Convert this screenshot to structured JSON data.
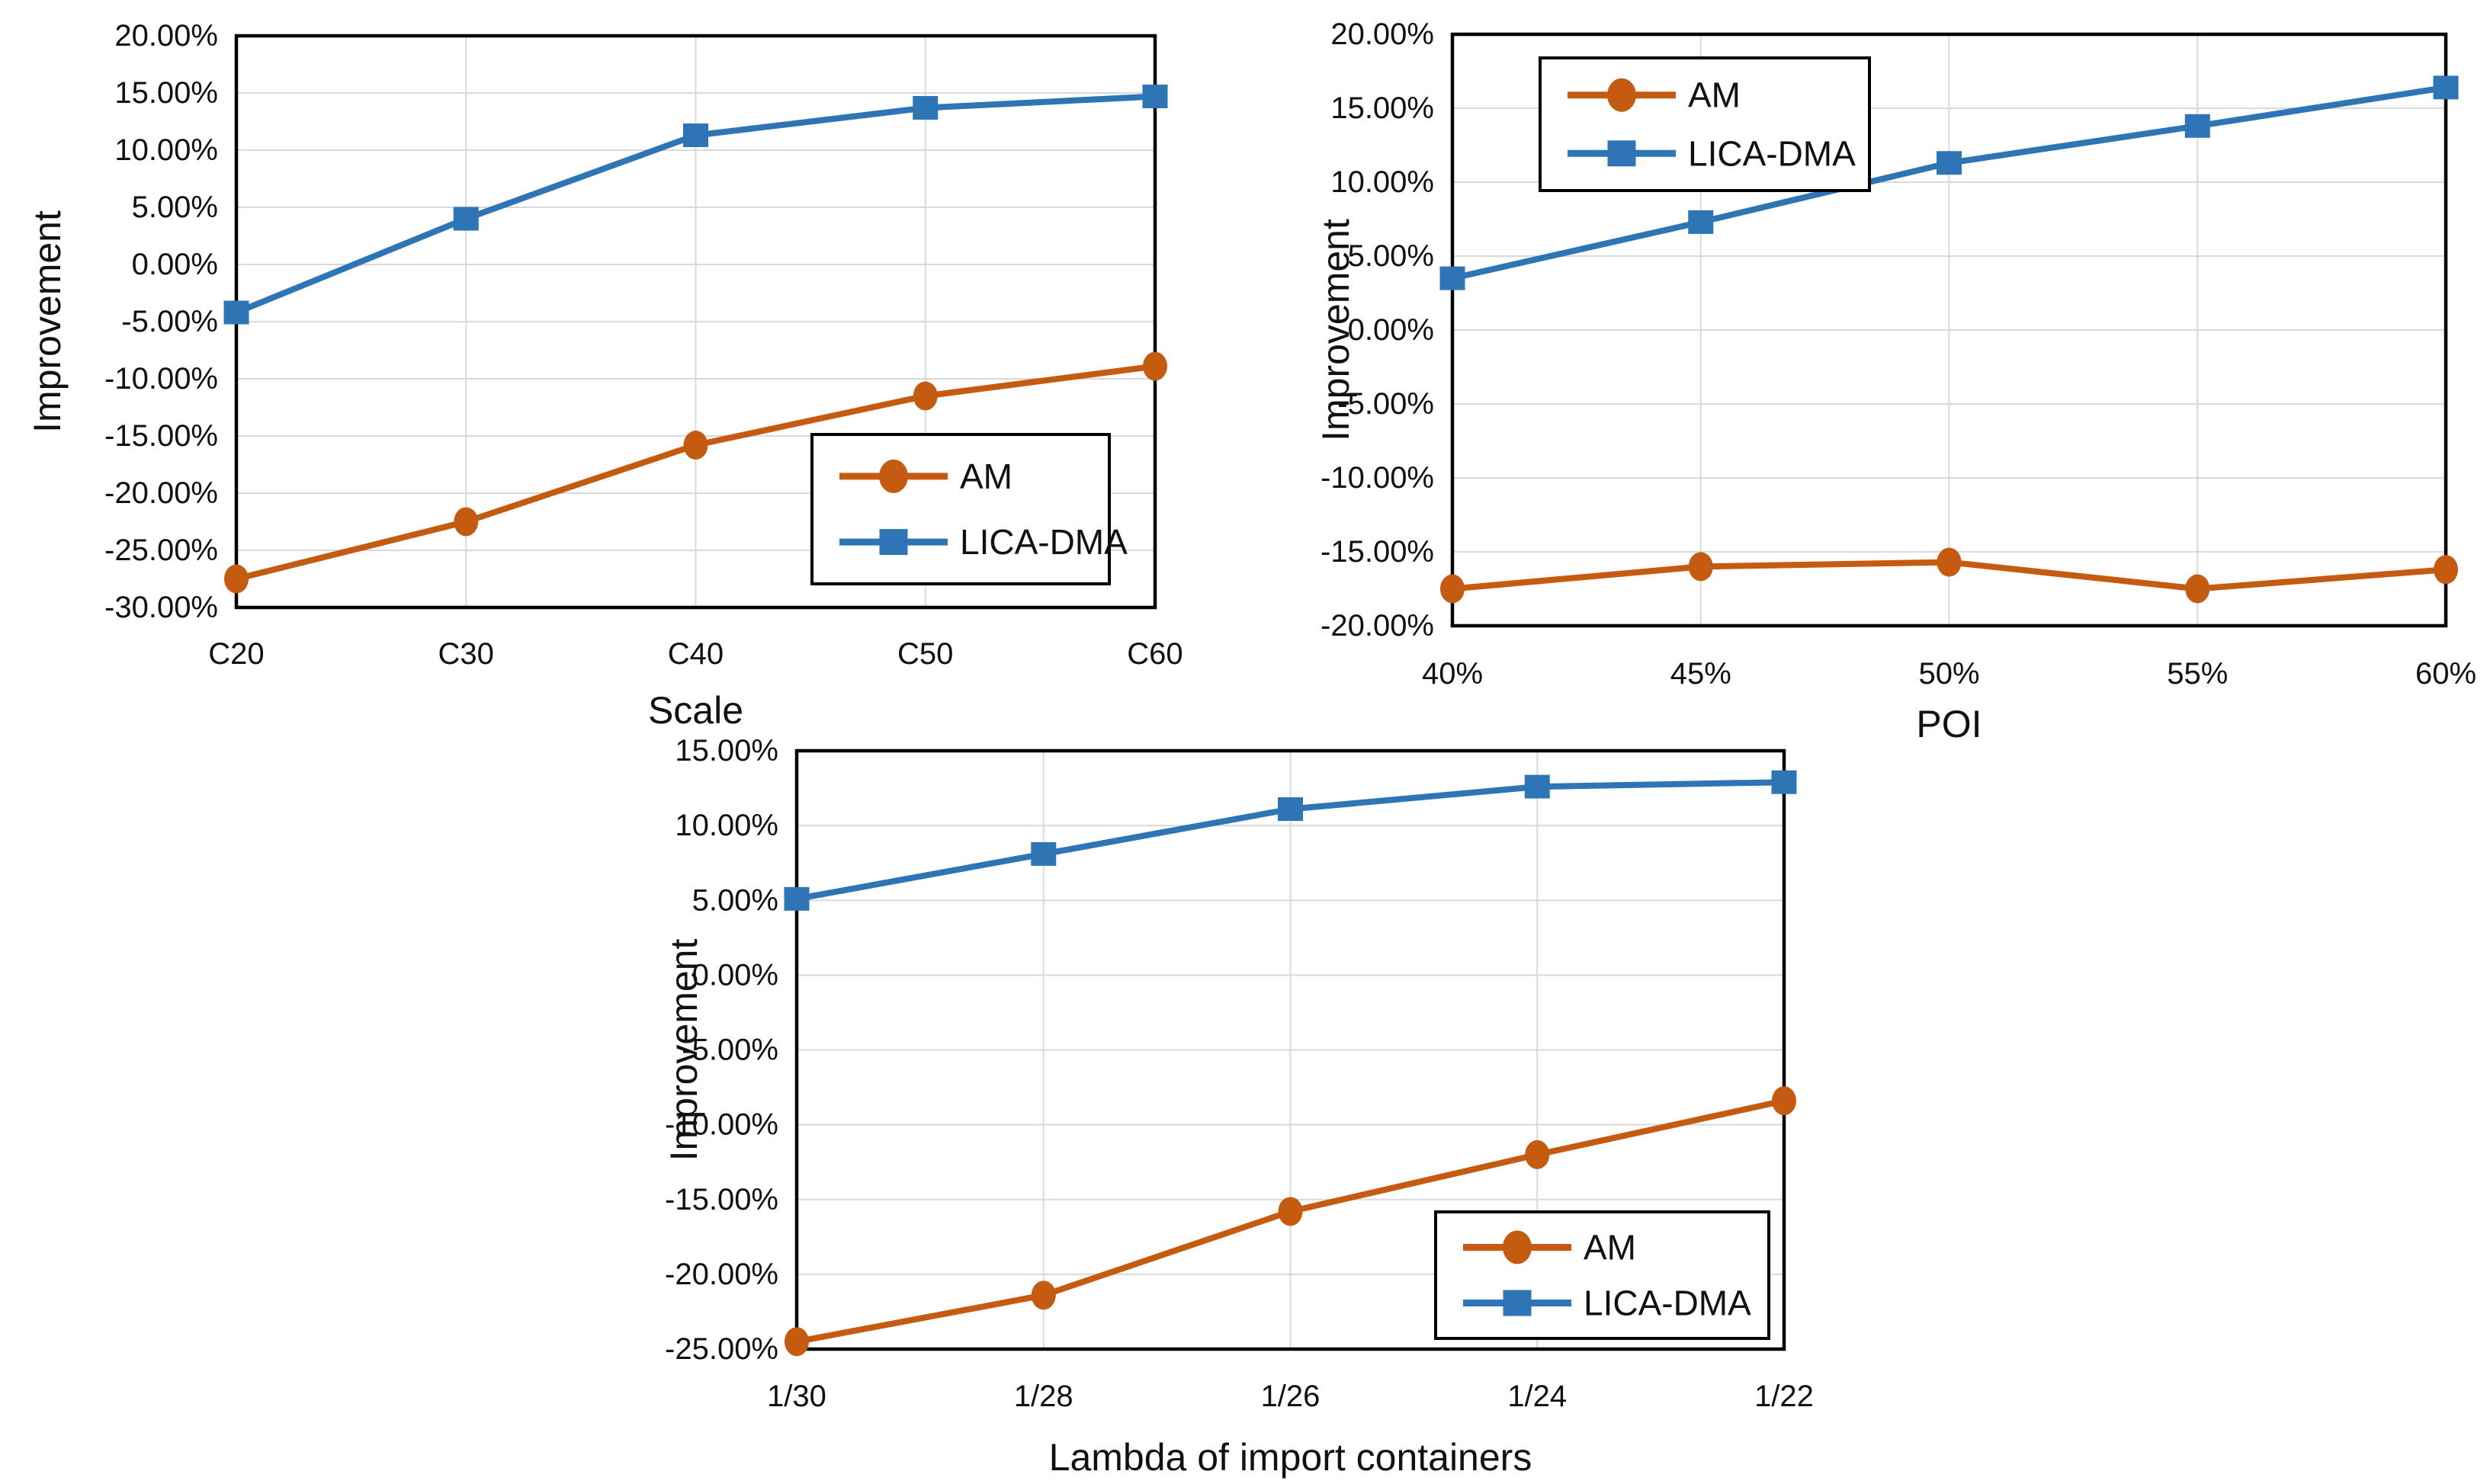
{
  "figure": {
    "background": "#ffffff",
    "text_color": "#111111",
    "grid_color": "#d9d9d9",
    "axis_color": "#000000"
  },
  "series_styles": {
    "AM": {
      "color": "#C55A11",
      "marker": "circle"
    },
    "LICA-DMA": {
      "color": "#2E75B6",
      "marker": "square"
    }
  },
  "chart_data": [
    {
      "id": "scale",
      "type": "line",
      "title": "",
      "xlabel": "Scale",
      "ylabel": "Improvement",
      "categories": [
        "C20",
        "C30",
        "C40",
        "C50",
        "C60"
      ],
      "ylim": [
        -30,
        20
      ],
      "ytick_step": 5,
      "ytick_labels": [
        "20.00%",
        "15.00%",
        "10.00%",
        "5.00%",
        "0.00%",
        "-5.00%",
        "-10.00%",
        "-15.00%",
        "-20.00%",
        "-25.00%",
        "-30.00%"
      ],
      "grid": true,
      "legend_position": "bottom-right",
      "series": [
        {
          "name": "AM",
          "values": [
            -27.5,
            -22.5,
            -15.8,
            -11.5,
            -8.9
          ]
        },
        {
          "name": "LICA-DMA",
          "values": [
            -4.2,
            4.0,
            11.3,
            13.7,
            14.7
          ]
        }
      ]
    },
    {
      "id": "poi",
      "type": "line",
      "title": "",
      "xlabel": "POI",
      "ylabel": "Improvement",
      "categories": [
        "40%",
        "45%",
        "50%",
        "55%",
        "60%"
      ],
      "ylim": [
        -20,
        20
      ],
      "ytick_step": 5,
      "ytick_labels": [
        "20.00%",
        "15.00%",
        "10.00%",
        "5.00%",
        "0.00%",
        "-5.00%",
        "-10.00%",
        "-15.00%",
        "-20.00%"
      ],
      "grid": true,
      "legend_position": "top-left",
      "series": [
        {
          "name": "AM",
          "values": [
            -17.5,
            -16.0,
            -15.7,
            -17.5,
            -16.2
          ]
        },
        {
          "name": "LICA-DMA",
          "values": [
            3.5,
            7.3,
            11.3,
            13.8,
            16.4
          ]
        }
      ]
    },
    {
      "id": "lambda",
      "type": "line",
      "title": "",
      "xlabel": "Lambda of import containers",
      "ylabel": "Improvement",
      "categories": [
        "1/30",
        "1/28",
        "1/26",
        "1/24",
        "1/22"
      ],
      "ylim": [
        -25,
        15
      ],
      "ytick_step": 5,
      "ytick_labels": [
        "15.00%",
        "10.00%",
        "5.00%",
        "0.00%",
        "-5.00%",
        "-10.00%",
        "-15.00%",
        "-20.00%",
        "-25.00%"
      ],
      "grid": true,
      "legend_position": "bottom-right",
      "series": [
        {
          "name": "AM",
          "values": [
            -24.5,
            -21.4,
            -15.8,
            -12.0,
            -8.4
          ]
        },
        {
          "name": "LICA-DMA",
          "values": [
            5.1,
            8.1,
            11.1,
            12.6,
            12.9
          ]
        }
      ]
    }
  ]
}
